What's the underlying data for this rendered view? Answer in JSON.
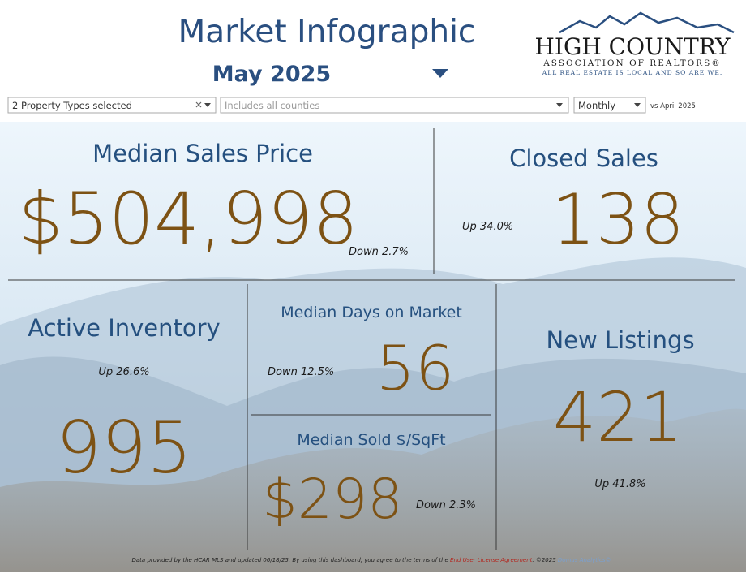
{
  "header": {
    "title": "Market Infographic",
    "subtitle": "May 2025"
  },
  "logo": {
    "name": "HIGH COUNTRY",
    "subname": "ASSOCIATION OF REALTORS®",
    "tagline": "ALL REAL ESTATE IS LOCAL AND SO ARE WE."
  },
  "filters": {
    "property_types": "2 Property Types selected",
    "counties": "Includes all counties",
    "period": "Monthly",
    "comparison": "vs April 2025"
  },
  "metrics": [
    {
      "label": "Median Sales Price",
      "value": "$504,998",
      "change": "Down 2.7%"
    },
    {
      "label": "Closed Sales",
      "value": "138",
      "change": "Up 34.0%"
    },
    {
      "label": "Active Inventory",
      "value": "995",
      "change": "Up 26.6%"
    },
    {
      "label": "Median Days on Market",
      "value": "56",
      "change": "Down 12.5%"
    },
    {
      "label": "Median Sold $/SqFt",
      "value": "$298",
      "change": "Down 2.3%"
    },
    {
      "label": "New Listings",
      "value": "421",
      "change": "Up 41.8%"
    }
  ],
  "footer": {
    "text": "Data provided by the HCAR MLS and updated 06/18/25.  By using this dashboard, you agree to the terms of the ",
    "link": "End User License Agreement",
    "copyright": ".  ©2025 ",
    "brand": "Domus Analytics©"
  }
}
